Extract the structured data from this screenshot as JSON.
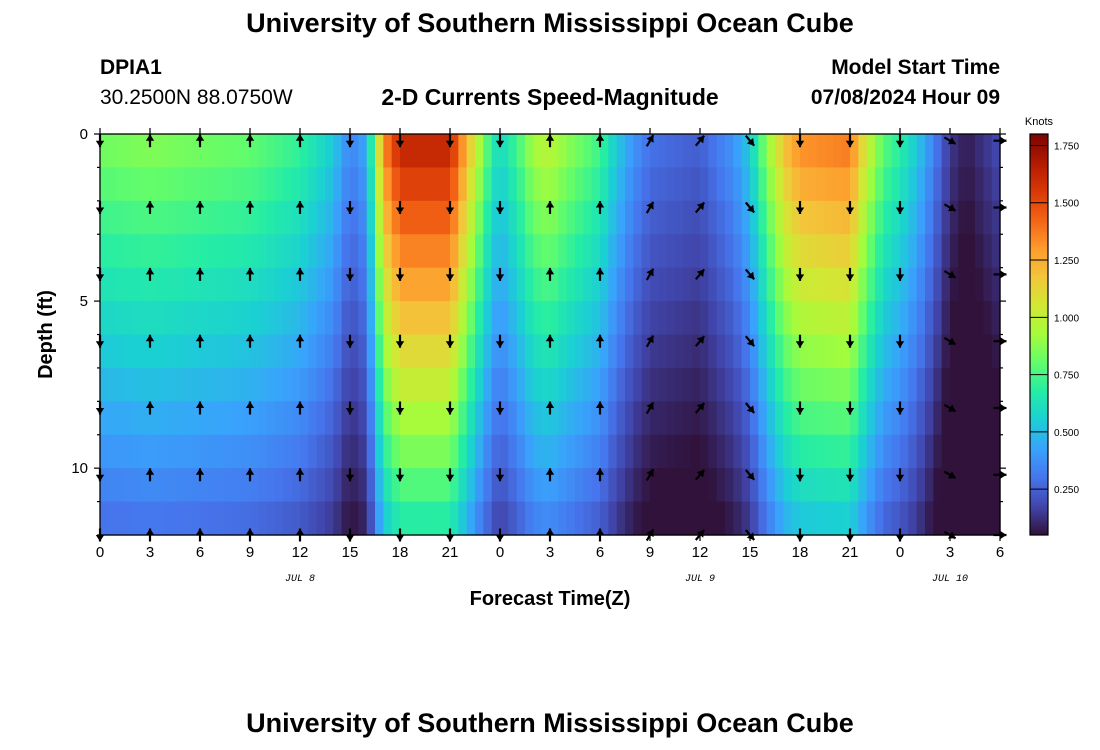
{
  "header": {
    "title": "University of Southern Mississippi Ocean Cube",
    "station": "DPIA1",
    "coords": "30.2500N  88.0750W",
    "chart_title": "2-D Currents Speed-Magnitude",
    "start_label": "Model Start Time",
    "start_value": "07/08/2024 Hour 09",
    "footer_title": "University of Southern Mississippi Ocean Cube"
  },
  "colors": {
    "palette": [
      "#30123b",
      "#4145ab",
      "#4675ed",
      "#39a2fc",
      "#1bcfd4",
      "#24eca6",
      "#61fc6c",
      "#a4fc3b",
      "#d1e834",
      "#f3c63a",
      "#fe9b2d",
      "#f36315",
      "#d93806",
      "#b11901",
      "#7a0403"
    ]
  },
  "chart_data": {
    "type": "heatmap",
    "title": "2-D Currents Speed-Magnitude",
    "xlabel": "Forecast Time(Z)",
    "ylabel": "Depth (ft)",
    "x_ticks": [
      "0",
      "3",
      "6",
      "9",
      "12",
      "15",
      "18",
      "21",
      "0",
      "3",
      "6",
      "9",
      "12",
      "15",
      "18",
      "21",
      "0",
      "3",
      "6"
    ],
    "x_tick_hours": [
      0,
      3,
      6,
      9,
      12,
      15,
      18,
      21,
      24,
      27,
      30,
      33,
      36,
      39,
      42,
      45,
      48,
      51,
      54
    ],
    "x_range": [
      0,
      54
    ],
    "day_labels": [
      {
        "text": "JUL 8",
        "hour": 12
      },
      {
        "text": "JUL 9",
        "hour": 36
      },
      {
        "text": "JUL 10",
        "hour": 51
      }
    ],
    "y_ticks": [
      "0",
      "5",
      "10"
    ],
    "y_tick_values": [
      0,
      5,
      10
    ],
    "y_range": [
      0,
      12
    ],
    "colorbar": {
      "label": "Knots",
      "ticks": [
        "0.250",
        "0.500",
        "0.750",
        "1.000",
        "1.250",
        "1.500",
        "1.750"
      ],
      "tick_values": [
        0.25,
        0.5,
        0.75,
        1.0,
        1.25,
        1.5,
        1.75
      ],
      "range": [
        0.05,
        1.8
      ]
    },
    "speed_profile_hours": [
      0,
      3,
      6,
      9,
      12,
      14,
      15,
      16,
      17,
      18,
      21,
      22.5,
      23.5,
      24,
      25,
      26,
      27,
      28,
      30,
      31,
      32,
      33,
      36,
      38,
      39,
      40,
      41,
      42,
      45,
      46,
      47,
      48,
      49,
      50,
      51,
      52,
      54
    ],
    "speed_profile_knots": [
      0.85,
      0.88,
      0.85,
      0.82,
      0.72,
      0.55,
      0.35,
      0.45,
      1.35,
      1.65,
      1.65,
      1.05,
      0.7,
      0.6,
      0.75,
      0.95,
      1.0,
      0.9,
      0.75,
      0.55,
      0.4,
      0.3,
      0.25,
      0.4,
      0.55,
      0.9,
      1.2,
      1.35,
      1.4,
      1.05,
      0.8,
      0.7,
      0.55,
      0.35,
      0.15,
      0.08,
      0.2
    ],
    "depth_decay": 0.045,
    "arrow_depths": [
      0.2,
      2.2,
      4.2,
      6.2,
      8.2,
      10.2,
      12.0
    ],
    "arrow_hours": [
      0,
      3,
      6,
      9,
      12,
      15,
      18,
      21,
      24,
      27,
      30,
      33,
      36,
      39,
      42,
      45,
      48,
      51,
      54
    ],
    "arrow_direction_deg": [
      180,
      0,
      0,
      0,
      0,
      180,
      180,
      180,
      180,
      0,
      0,
      30,
      40,
      140,
      180,
      180,
      180,
      120,
      90
    ]
  }
}
